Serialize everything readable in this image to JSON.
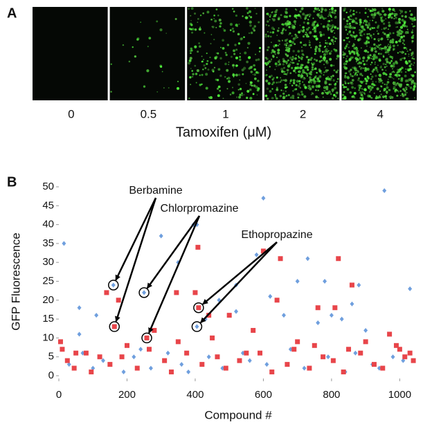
{
  "panel_a": {
    "label": "A",
    "concentrations": [
      "0",
      "0.5",
      "1",
      "2",
      "4"
    ],
    "axis_label": "Tamoxifen (μM)"
  },
  "chart_data": {
    "type": "scatter",
    "panel_label": "B",
    "x_label": "Compound #",
    "y_label": "GFP Fluorescence",
    "xlim": [
      0,
      1050
    ],
    "ylim": [
      0,
      50
    ],
    "xticks": [
      0,
      200,
      400,
      600,
      800,
      1000
    ],
    "yticks": [
      0,
      5,
      10,
      15,
      20,
      25,
      30,
      35,
      40,
      45,
      50
    ],
    "series": [
      {
        "color": "#6f9fde",
        "marker": "diamond",
        "x": [
          15,
          60,
          110,
          160,
          250,
          300,
          350,
          395,
          405,
          405,
          430,
          470,
          520,
          520,
          580,
          600,
          620,
          660,
          700,
          730,
          760,
          780,
          800,
          830,
          860,
          880,
          900,
          955,
          1030,
          60,
          30,
          70,
          100,
          130,
          190,
          220,
          240,
          270,
          320,
          360,
          380,
          440,
          480,
          540,
          560,
          610,
          680,
          720,
          790,
          840,
          870,
          920,
          940,
          980,
          1010
        ],
        "y": [
          35,
          18,
          16,
          24,
          22,
          37,
          30,
          40,
          40,
          13,
          15,
          20,
          24,
          17,
          32,
          47,
          21,
          16,
          25,
          31,
          14,
          25,
          16,
          15,
          19,
          24,
          12,
          49,
          23,
          11,
          3,
          6,
          2,
          4,
          1,
          5,
          7,
          2,
          6,
          3,
          1,
          5,
          2,
          6,
          4,
          3,
          7,
          2,
          5,
          1,
          6,
          3,
          2,
          5,
          4
        ]
      },
      {
        "color": "#e8454a",
        "marker": "square",
        "x": [
          5,
          10,
          140,
          163,
          175,
          258,
          280,
          345,
          408,
          410,
          400,
          440,
          500,
          570,
          600,
          650,
          640,
          760,
          820,
          810,
          860,
          970,
          990,
          50,
          120,
          200,
          350,
          450,
          550,
          700,
          750,
          850,
          900,
          1000,
          1030,
          25,
          45,
          80,
          95,
          150,
          185,
          230,
          265,
          310,
          330,
          375,
          420,
          465,
          490,
          530,
          590,
          625,
          670,
          690,
          735,
          775,
          805,
          835,
          885,
          925,
          950,
          1015,
          1040
        ],
        "y": [
          9,
          7,
          22,
          13,
          20,
          10,
          12,
          22,
          34,
          18,
          22,
          16,
          16,
          12,
          33,
          31,
          20,
          18,
          31,
          18,
          24,
          11,
          8,
          6,
          5,
          8,
          9,
          10,
          6,
          9,
          8,
          7,
          9,
          7,
          6,
          4,
          2,
          6,
          1,
          3,
          5,
          2,
          7,
          4,
          1,
          6,
          3,
          5,
          2,
          4,
          6,
          1,
          3,
          7,
          2,
          5,
          4,
          1,
          6,
          3,
          2,
          5,
          4
        ]
      }
    ],
    "annotations": [
      {
        "text": "Berbamine",
        "x": [
          160,
          163
        ],
        "y": [
          24,
          13
        ]
      },
      {
        "text": "Chlorpromazine",
        "x": [
          250,
          258
        ],
        "y": [
          22,
          10
        ]
      },
      {
        "text": "Ethopropazine",
        "x": [
          410,
          405
        ],
        "y": [
          18,
          13
        ]
      }
    ]
  }
}
